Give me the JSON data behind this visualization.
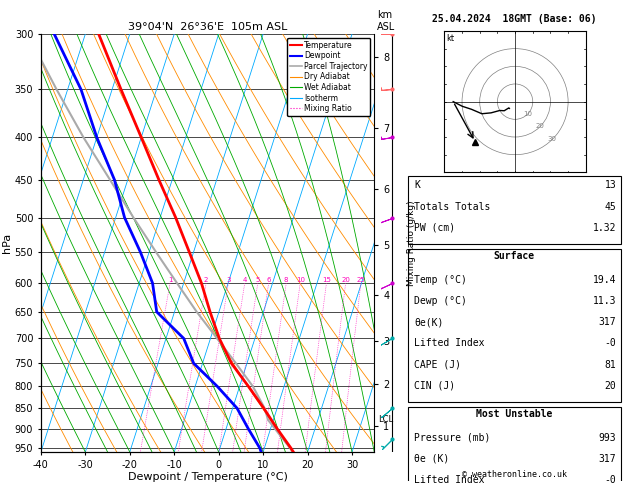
{
  "title_left": "39°04'N  26°36'E  105m ASL",
  "title_right": "25.04.2024  18GMT (Base: 06)",
  "xlabel": "Dewpoint / Temperature (°C)",
  "ylabel_left": "hPa",
  "pressure_levels": [
    300,
    350,
    400,
    450,
    500,
    550,
    600,
    650,
    700,
    750,
    800,
    850,
    900,
    950
  ],
  "temp_axis_min": -40,
  "temp_axis_max": 35,
  "pressure_min": 300,
  "pressure_max": 960,
  "colors": {
    "temperature": "#ff0000",
    "dewpoint": "#0000ff",
    "parcel": "#aaaaaa",
    "dry_adiabat": "#ff8c00",
    "wet_adiabat": "#00aa00",
    "isotherm": "#00aaff",
    "mixing_ratio": "#ff00bb",
    "background": "#ffffff"
  },
  "skew_factor": 30.0,
  "mixing_ratio_levels": [
    1,
    2,
    3,
    4,
    5,
    6,
    8,
    10,
    15,
    20,
    25
  ],
  "km_ticks": [
    1,
    2,
    3,
    4,
    5,
    6,
    7,
    8
  ],
  "km_pressures": [
    893,
    795,
    705,
    620,
    540,
    462,
    390,
    320
  ],
  "lcl_pressure": 878,
  "temp_profile": {
    "pressure": [
      993,
      950,
      900,
      850,
      800,
      750,
      700,
      650,
      600,
      550,
      500,
      450,
      400,
      350,
      300
    ],
    "temp": [
      19.4,
      16.0,
      11.5,
      7.0,
      2.0,
      -3.5,
      -8.0,
      -12.0,
      -16.0,
      -21.0,
      -26.5,
      -33.0,
      -40.0,
      -48.0,
      -57.0
    ]
  },
  "dewp_profile": {
    "pressure": [
      993,
      950,
      900,
      850,
      800,
      750,
      700,
      650,
      600,
      550,
      500,
      450,
      400,
      350,
      300
    ],
    "temp": [
      11.3,
      9.0,
      5.0,
      1.0,
      -5.0,
      -12.0,
      -16.0,
      -24.0,
      -27.0,
      -32.0,
      -38.0,
      -43.0,
      -50.0,
      -57.0,
      -67.0
    ]
  },
  "parcel_profile": {
    "pressure": [
      993,
      950,
      900,
      878,
      850,
      800,
      750,
      700,
      650,
      600,
      550,
      500,
      450,
      400,
      350,
      300
    ],
    "temp": [
      19.4,
      15.8,
      11.0,
      8.8,
      7.2,
      3.0,
      -2.5,
      -8.5,
      -15.0,
      -21.5,
      -28.5,
      -36.0,
      -44.0,
      -53.0,
      -62.5,
      -73.0
    ]
  },
  "wind_barbs": {
    "pressure": [
      300,
      350,
      400,
      500,
      600,
      700,
      850,
      925,
      993
    ],
    "speed": [
      35,
      30,
      25,
      20,
      15,
      10,
      8,
      5,
      5
    ],
    "direction": [
      270,
      265,
      260,
      250,
      245,
      240,
      230,
      225,
      220
    ]
  },
  "copyright": "© weatheronline.co.uk"
}
